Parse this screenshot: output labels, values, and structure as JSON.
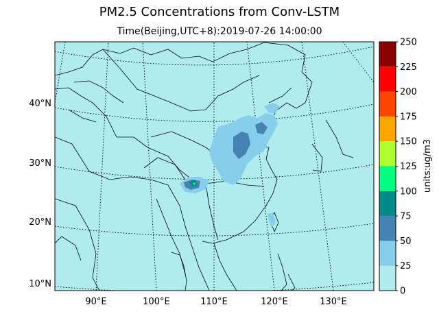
{
  "figure": {
    "title": "PM2.5 Concentrations from Conv-LSTM",
    "subtitle": "Time(Beijing,UTC+8):2019-07-26 14:00:00"
  },
  "map": {
    "lon_ticks": [
      "90°E",
      "100°E",
      "110°E",
      "120°E",
      "130°E"
    ],
    "lat_ticks": [
      "10°N",
      "20°N",
      "30°N",
      "40°N"
    ]
  },
  "colorbar": {
    "label": "units:ug/m3",
    "ticks": [
      "0",
      "25",
      "50",
      "75",
      "100",
      "125",
      "150",
      "175",
      "200",
      "225",
      "250"
    ],
    "colors": [
      "#b0ecee",
      "#87ceeb",
      "#4682b4",
      "#008b8b",
      "#00ff7f",
      "#adff2f",
      "#ffa500",
      "#ff4500",
      "#ff0000",
      "#8b0000"
    ]
  }
}
